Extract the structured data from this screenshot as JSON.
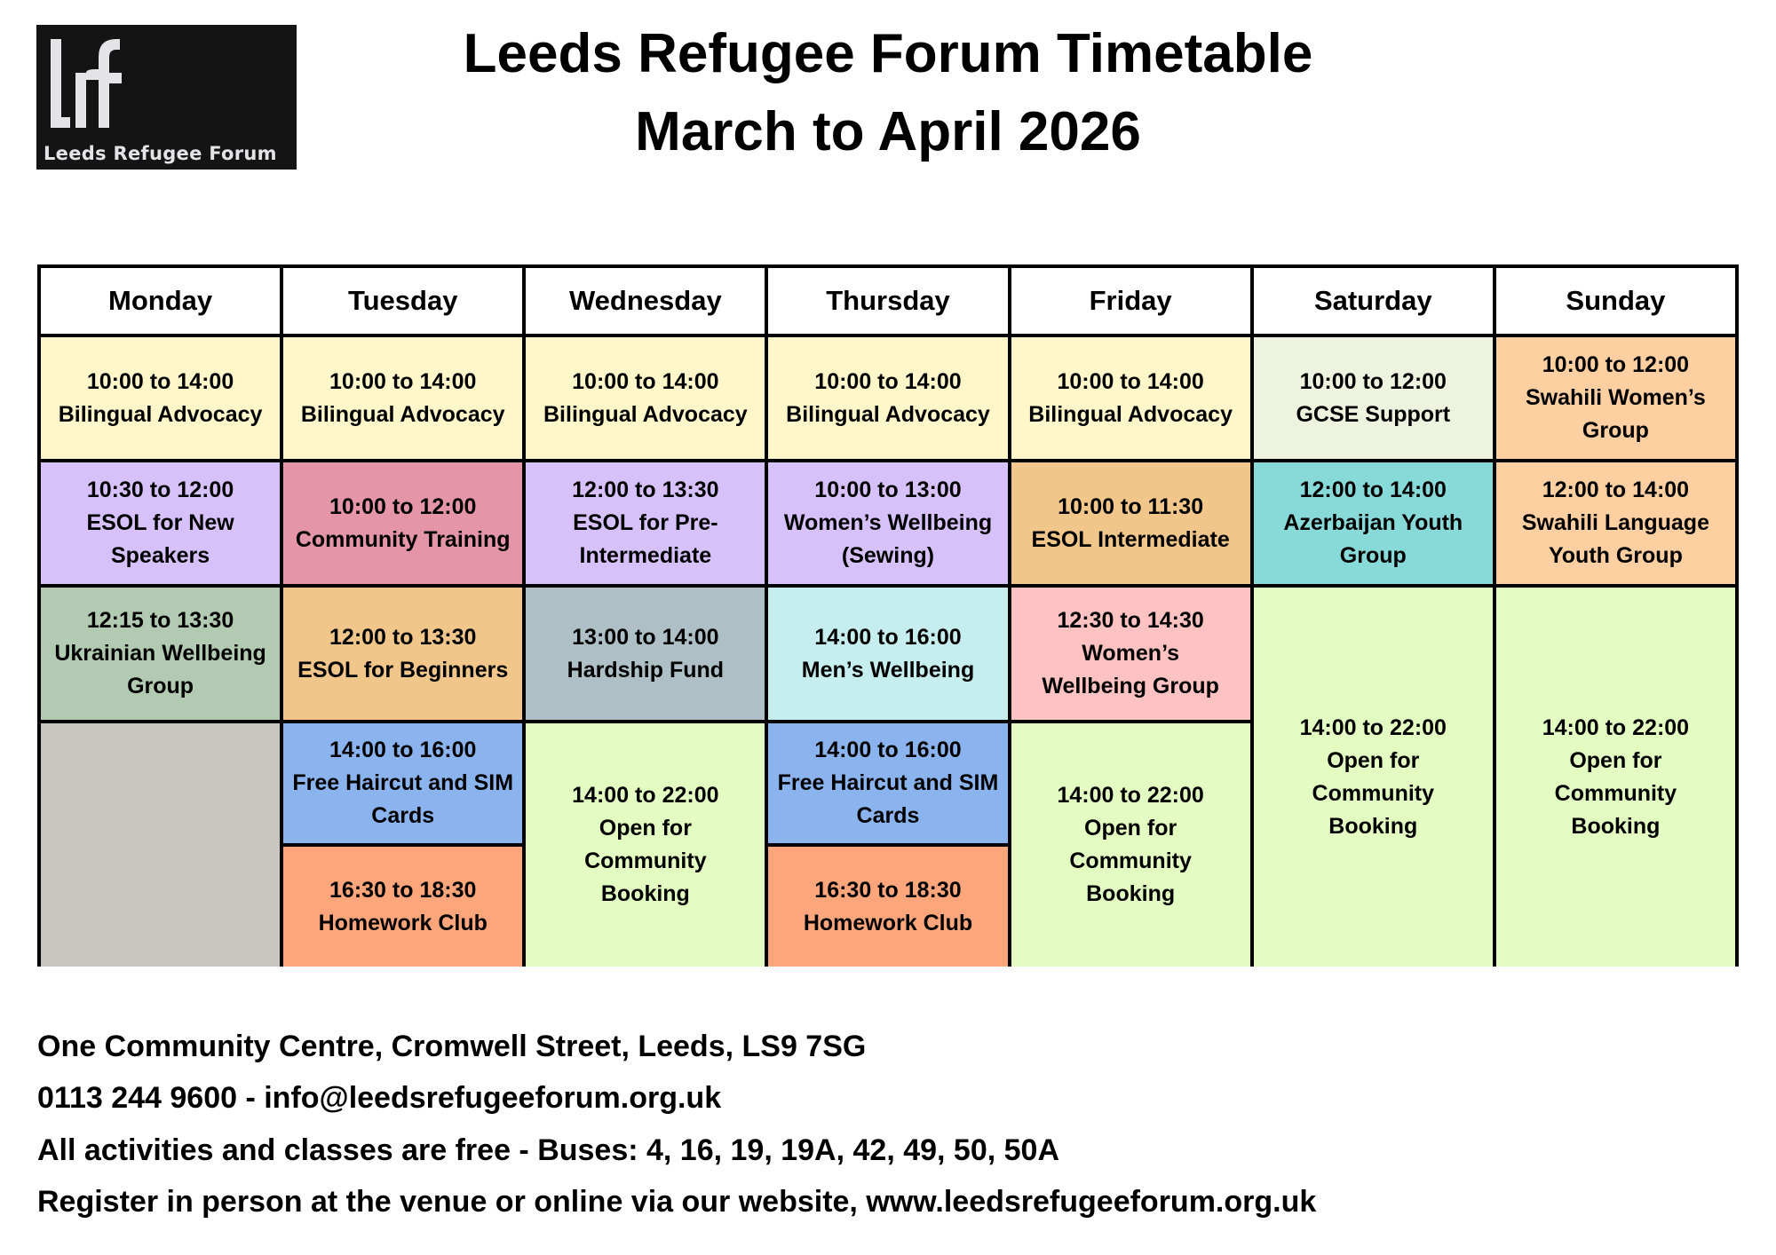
{
  "logo": {
    "mark": "lrf",
    "text": "Leeds Refugee Forum"
  },
  "title": {
    "line1": "Leeds Refugee Forum Timetable",
    "line2": "March to April 2026"
  },
  "headers": [
    "Monday",
    "Tuesday",
    "Wednesday",
    "Thursday",
    "Friday",
    "Saturday",
    "Sunday"
  ],
  "days": {
    "monday": [
      {
        "time": "10:00 to 14:00",
        "title": "Bilingual Advocacy",
        "color": "#fff7c9"
      },
      {
        "time": "10:30 to 12:00",
        "title": "ESOL for New Speakers",
        "color": "#d7c1fa"
      },
      {
        "time": "12:15 to 13:30",
        "title": "Ukrainian Wellbeing Group",
        "color": "#b2cab2"
      },
      {
        "time": "",
        "title": "",
        "color": "#c9c5c1"
      }
    ],
    "tuesday": [
      {
        "time": "10:00 to 14:00",
        "title": "Bilingual Advocacy",
        "color": "#fff7c9"
      },
      {
        "time": "10:00 to 12:00",
        "title": "Community Training",
        "color": "#e496a8"
      },
      {
        "time": "12:00 to 13:30",
        "title": "ESOL for Beginners",
        "color": "#f0c68b"
      },
      {
        "time": "14:00 to 16:00",
        "title": "Free Haircut and SIM Cards",
        "color": "#8bb4ef"
      },
      {
        "time": "16:30 to 18:30",
        "title": "Homework Club",
        "color": "#fea67b"
      }
    ],
    "wednesday": [
      {
        "time": "10:00 to 14:00",
        "title": "Bilingual Advocacy",
        "color": "#fff7c9"
      },
      {
        "time": "12:00 to 13:30",
        "title": "ESOL for Pre-Intermediate",
        "color": "#d7c1fa"
      },
      {
        "time": "13:00 to 14:00",
        "title": "Hardship Fund",
        "color": "#aebfc6"
      },
      {
        "time": "14:00 to 22:00",
        "title": "Open for Community Booking",
        "color": "#e2fcc1"
      }
    ],
    "thursday": [
      {
        "time": "10:00 to 14:00",
        "title": "Bilingual Advocacy",
        "color": "#fff7c9"
      },
      {
        "time": "10:00 to 13:00",
        "title": "Women’s Wellbeing (Sewing)",
        "color": "#d7c1fa"
      },
      {
        "time": "14:00 to 16:00",
        "title": "Men’s Wellbeing",
        "color": "#c7eeee"
      },
      {
        "time": "14:00 to 16:00",
        "title": "Free Haircut and SIM Cards",
        "color": "#8bb4ef"
      },
      {
        "time": "16:30 to 18:30",
        "title": "Homework Club",
        "color": "#fea67b"
      }
    ],
    "friday": [
      {
        "time": "10:00 to 14:00",
        "title": "Bilingual Advocacy",
        "color": "#fff7c9"
      },
      {
        "time": "10:00 to 11:30",
        "title": "ESOL Intermediate",
        "color": "#f0c68b"
      },
      {
        "time": "12:30 to 14:30",
        "title": "Women’s Wellbeing Group",
        "color": "#fec2c2"
      },
      {
        "time": "14:00 to 22:00",
        "title": "Open for Community Booking",
        "color": "#e2fcc1"
      }
    ],
    "saturday": [
      {
        "time": "10:00 to 12:00",
        "title": "GCSE Support",
        "color": "#eef3e0"
      },
      {
        "time": "12:00 to 14:00",
        "title": "Azerbaijan Youth Group",
        "color": "#88dad9"
      },
      {
        "time": "14:00 to 22:00",
        "title": "Open for Community Booking",
        "color": "#e2fcc1"
      }
    ],
    "sunday": [
      {
        "time": "10:00 to 12:00",
        "title": "Swahili Women’s Group",
        "color": "#fecfa1"
      },
      {
        "time": "12:00 to 14:00",
        "title": "Swahili Language Youth Group",
        "color": "#fecfa1"
      },
      {
        "time": "14:00 to 22:00",
        "title": "Open for Community Booking",
        "color": "#e2fcc1"
      }
    ]
  },
  "footer": [
    "One Community Centre, Cromwell Street, Leeds, LS9 7SG",
    "0113 244 9600 - info@leedsrefugeeforum.org.uk",
    "All activities and classes are free - Buses: 4, 16, 19, 19A, 42, 49, 50, 50A",
    "Register in person at the venue or online via our website, www.leedsrefugeeforum.org.uk"
  ]
}
